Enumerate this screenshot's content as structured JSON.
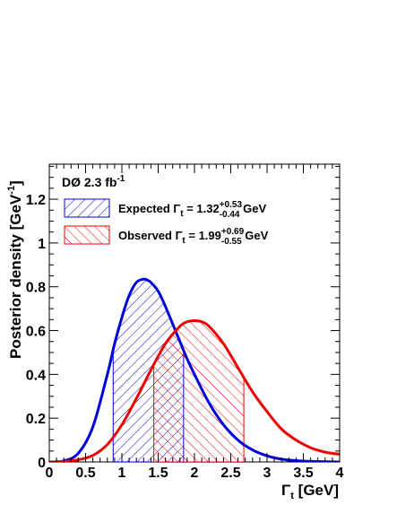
{
  "chart_data": {
    "type": "line",
    "experiment": "DØ 2.3 fb",
    "experiment_sup": "-1",
    "xlabel": "Γ",
    "xlabel_sub": "t",
    "xlabel_unit": " [GeV]",
    "ylabel": "Posterior density [GeV",
    "ylabel_sup": "-1",
    "ylabel_close": "]",
    "xlim": [
      0,
      4
    ],
    "ylim": [
      0,
      1.36
    ],
    "x_ticks": [
      "0",
      "0.5",
      "1",
      "1.5",
      "2",
      "2.5",
      "3",
      "3.5",
      "4"
    ],
    "y_ticks": [
      "0",
      "0.2",
      "0.4",
      "0.6",
      "0.8",
      "1",
      "1.2"
    ],
    "series": [
      {
        "name": "Expected",
        "color": "#0000dd",
        "interval_low": 0.88,
        "interval_high": 1.85,
        "x": [
          0.0,
          0.2,
          0.4,
          0.6,
          0.8,
          0.9,
          1.0,
          1.1,
          1.2,
          1.3,
          1.35,
          1.4,
          1.5,
          1.6,
          1.7,
          1.8,
          1.9,
          2.0,
          2.2,
          2.4,
          2.6,
          2.8,
          3.0,
          3.2,
          3.5,
          4.0
        ],
        "y": [
          0.0,
          0.005,
          0.04,
          0.16,
          0.4,
          0.54,
          0.66,
          0.76,
          0.82,
          0.835,
          0.83,
          0.82,
          0.78,
          0.71,
          0.63,
          0.55,
          0.47,
          0.4,
          0.27,
          0.17,
          0.1,
          0.055,
          0.028,
          0.013,
          0.004,
          0.0
        ]
      },
      {
        "name": "Observed",
        "color": "#ee0000",
        "interval_low": 1.44,
        "interval_high": 2.68,
        "x": [
          0.0,
          0.2,
          0.4,
          0.6,
          0.8,
          1.0,
          1.2,
          1.4,
          1.6,
          1.8,
          1.9,
          2.0,
          2.1,
          2.2,
          2.4,
          2.6,
          2.8,
          3.0,
          3.2,
          3.4,
          3.6,
          3.8,
          4.0
        ],
        "y": [
          0.0,
          0.002,
          0.01,
          0.03,
          0.08,
          0.17,
          0.29,
          0.42,
          0.54,
          0.62,
          0.64,
          0.645,
          0.64,
          0.62,
          0.54,
          0.43,
          0.32,
          0.23,
          0.15,
          0.1,
          0.065,
          0.045,
          0.035
        ]
      }
    ],
    "legend": [
      {
        "label": "Expected Γ",
        "sub": "t",
        "mid": " = 1.32",
        "sup": "+0.53",
        "low": "-0.44",
        "unit": " GeV",
        "color": "#0000dd"
      },
      {
        "label": "Observed Γ",
        "sub": "t",
        "mid": " = 1.99",
        "sup": "+0.69",
        "low": "-0.55",
        "unit": " GeV",
        "color": "#ee0000"
      }
    ]
  }
}
